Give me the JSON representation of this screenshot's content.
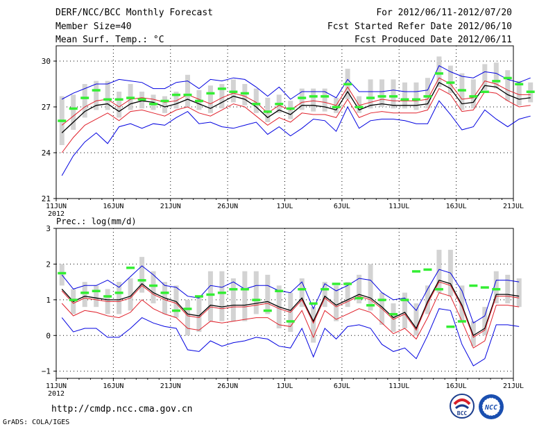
{
  "header": {
    "title": "DERF/NCC/BCC Monthly Forecast",
    "member_size": "Member Size=40",
    "variable": "Mean Surf. Temp.: °C",
    "period": "For 2012/06/11-2012/07/20",
    "refer_date": "Fcst Started Refer Date 2012/06/10",
    "produced_date": "Fcst Produced Date 2012/06/11"
  },
  "footer": {
    "url": "http://cmdp.ncc.cma.gov.cn",
    "credit": "GrADS: COLA/IGES",
    "logo_left_text": "BCC",
    "logo_right_text": "NCC"
  },
  "colors": {
    "bar": "#d3d3d3",
    "green": "#33ee33",
    "mean": "#000000",
    "inner": "#e0202a",
    "outer": "#0000e0"
  },
  "chart_data": [
    {
      "type": "line",
      "title": "Mean Surf. Temp.: °C",
      "x_ticks": [
        "11JUN",
        "16JUN",
        "21JUN",
        "26JUN",
        "1JUL",
        "6JUL",
        "11JUL",
        "16JUL",
        "21JUL"
      ],
      "x_year": "2012",
      "x_days": 40,
      "ylim": [
        21,
        31
      ],
      "yticks": [
        "21",
        "24",
        "27",
        "30"
      ],
      "grid": "dotted",
      "series": [
        {
          "name": "mean",
          "color": "#000000",
          "values": [
            25.3,
            26.0,
            26.7,
            27.1,
            27.2,
            26.7,
            27.2,
            27.4,
            27.3,
            27.0,
            27.2,
            27.5,
            27.2,
            26.9,
            27.3,
            27.7,
            27.5,
            27.0,
            26.3,
            26.8,
            26.5,
            27.1,
            27.1,
            27.0,
            26.8,
            28.0,
            26.8,
            27.1,
            27.2,
            27.1,
            27.1,
            27.1,
            27.2,
            28.6,
            28.2,
            27.2,
            27.3,
            28.4,
            28.3,
            27.8,
            27.5,
            27.6
          ]
        },
        {
          "name": "upper-inner",
          "color": "#e0202a",
          "values": [
            25.8,
            26.4,
            27.0,
            27.4,
            27.5,
            27.0,
            27.5,
            27.6,
            27.5,
            27.3,
            27.4,
            27.8,
            27.5,
            27.2,
            27.6,
            27.9,
            27.7,
            27.3,
            26.6,
            27.1,
            26.8,
            27.3,
            27.4,
            27.3,
            27.1,
            28.3,
            27.1,
            27.3,
            27.5,
            27.4,
            27.4,
            27.4,
            27.5,
            28.9,
            28.5,
            27.5,
            27.6,
            28.7,
            28.5,
            28.1,
            27.8,
            27.8
          ]
        },
        {
          "name": "lower-inner",
          "color": "#e0202a",
          "values": [
            24.0,
            25.0,
            25.8,
            26.2,
            26.6,
            26.1,
            26.7,
            26.8,
            26.6,
            26.4,
            26.8,
            27.0,
            26.6,
            26.4,
            26.8,
            27.2,
            27.0,
            26.4,
            25.8,
            26.3,
            26.0,
            26.6,
            26.5,
            26.5,
            26.3,
            27.5,
            26.3,
            26.6,
            26.7,
            26.6,
            26.6,
            26.6,
            26.8,
            28.2,
            27.8,
            26.7,
            26.8,
            28.0,
            27.9,
            27.4,
            27.0,
            27.1
          ]
        },
        {
          "name": "upper-outer",
          "color": "#0000e0",
          "values": [
            27.5,
            27.9,
            28.2,
            28.5,
            28.5,
            28.8,
            28.7,
            28.6,
            28.2,
            28.2,
            28.6,
            28.7,
            28.2,
            28.8,
            28.7,
            28.9,
            28.8,
            28.3,
            27.7,
            28.3,
            27.5,
            28.0,
            28.0,
            28.0,
            27.6,
            28.8,
            28.0,
            28.0,
            28.0,
            28.1,
            28.0,
            28.0,
            28.1,
            29.7,
            29.3,
            29.0,
            28.9,
            29.3,
            29.2,
            28.8,
            28.6,
            28.9
          ]
        },
        {
          "name": "lower-outer",
          "color": "#0000e0",
          "values": [
            22.5,
            23.8,
            24.7,
            25.3,
            24.6,
            25.7,
            25.9,
            25.6,
            25.9,
            25.8,
            26.3,
            26.7,
            25.9,
            26.0,
            25.7,
            25.6,
            25.8,
            26.0,
            25.2,
            25.7,
            25.1,
            25.6,
            26.2,
            26.1,
            25.4,
            27.0,
            25.6,
            26.1,
            26.2,
            26.2,
            26.1,
            25.9,
            25.9,
            27.4,
            26.5,
            25.5,
            25.7,
            26.8,
            26.2,
            25.7,
            26.2,
            26.4
          ]
        }
      ],
      "ensemble_ranges": [
        [
          24.5,
          27.7
        ],
        [
          25.5,
          27.8
        ],
        [
          26.3,
          28.5
        ],
        [
          26.8,
          28.7
        ],
        [
          26.8,
          28.7
        ],
        [
          26.3,
          28.0
        ],
        [
          26.8,
          28.5
        ],
        [
          26.9,
          28.0
        ],
        [
          26.8,
          27.8
        ],
        [
          26.6,
          27.7
        ],
        [
          26.9,
          28.0
        ],
        [
          27.0,
          29.1
        ],
        [
          26.8,
          28.1
        ],
        [
          26.6,
          28.4
        ],
        [
          26.9,
          28.5
        ],
        [
          27.3,
          28.8
        ],
        [
          27.1,
          28.5
        ],
        [
          26.6,
          28.2
        ],
        [
          26.0,
          27.6
        ],
        [
          26.6,
          27.8
        ],
        [
          26.2,
          27.4
        ],
        [
          26.8,
          28.2
        ],
        [
          26.7,
          28.2
        ],
        [
          26.7,
          28.2
        ],
        [
          26.6,
          27.6
        ],
        [
          27.5,
          29.5
        ],
        [
          26.6,
          27.7
        ],
        [
          26.9,
          28.8
        ],
        [
          27.0,
          28.8
        ],
        [
          26.9,
          28.8
        ],
        [
          26.9,
          28.6
        ],
        [
          26.8,
          28.6
        ],
        [
          26.9,
          28.9
        ],
        [
          28.3,
          30.3
        ],
        [
          27.9,
          29.7
        ],
        [
          26.8,
          29.2
        ],
        [
          26.9,
          28.8
        ],
        [
          28.1,
          29.8
        ],
        [
          28.2,
          29.9
        ],
        [
          27.4,
          29.4
        ],
        [
          27.1,
          28.7
        ],
        [
          27.3,
          28.6
        ]
      ],
      "observed_marks": [
        26.1,
        26.9,
        27.6,
        28.1,
        27.5,
        27.5,
        27.6,
        27.5,
        27.2,
        27.4,
        27.8,
        27.8,
        27.4,
        27.9,
        28.2,
        28.0,
        27.9,
        27.2,
        26.7,
        27.2,
        26.9,
        27.6,
        27.7,
        27.7,
        27.0,
        28.5,
        27.0,
        27.6,
        27.7,
        27.7,
        27.5,
        27.5,
        27.7,
        29.2,
        28.6,
        28.1,
        27.7,
        28.0,
        28.7,
        28.9,
        28.5,
        28.0
      ]
    },
    {
      "type": "line",
      "title": "Prec.: log(mm/d)",
      "x_ticks": [
        "11JUN",
        "16JUN",
        "21JUN",
        "26JUN",
        "1JUL",
        "6JUL",
        "11JUL",
        "16JUL",
        "21JUL"
      ],
      "x_year": "2012",
      "x_days": 40,
      "ylim": [
        -1.2,
        3
      ],
      "yticks": [
        "−1",
        "0",
        "1",
        "2",
        "3"
      ],
      "grid": "dotted",
      "series": [
        {
          "name": "mean",
          "color": "#000000",
          "values": [
            1.3,
            0.95,
            1.1,
            1.05,
            1.0,
            1.0,
            1.1,
            1.45,
            1.2,
            1.05,
            0.95,
            0.6,
            0.55,
            0.85,
            0.8,
            0.85,
            0.85,
            0.9,
            0.95,
            0.8,
            0.7,
            1.05,
            0.4,
            1.1,
            0.85,
            1.0,
            1.15,
            1.05,
            0.8,
            0.5,
            0.65,
            0.2,
            0.95,
            1.55,
            1.45,
            0.85,
            0.0,
            0.2,
            1.15,
            1.15,
            1.1
          ]
        },
        {
          "name": "upper-inner",
          "color": "#e0202a",
          "values": [
            1.25,
            0.9,
            1.05,
            1.0,
            0.95,
            0.95,
            1.05,
            1.4,
            1.15,
            1.0,
            0.9,
            0.55,
            0.5,
            0.8,
            0.75,
            0.8,
            0.8,
            0.85,
            0.9,
            0.75,
            0.65,
            1.0,
            0.35,
            1.05,
            0.8,
            0.95,
            1.1,
            1.0,
            0.75,
            0.45,
            0.6,
            0.15,
            0.9,
            1.5,
            1.4,
            0.8,
            -0.05,
            0.15,
            1.1,
            1.1,
            1.05
          ]
        },
        {
          "name": "lower-inner",
          "color": "#e0202a",
          "values": [
            0.9,
            0.55,
            0.7,
            0.65,
            0.55,
            0.5,
            0.65,
            1.0,
            0.75,
            0.6,
            0.5,
            0.2,
            0.15,
            0.4,
            0.35,
            0.4,
            0.45,
            0.5,
            0.5,
            0.3,
            0.25,
            0.7,
            -0.05,
            0.7,
            0.45,
            0.6,
            0.75,
            0.65,
            0.35,
            0.05,
            0.2,
            -0.1,
            0.5,
            1.2,
            1.1,
            0.4,
            -0.35,
            -0.15,
            0.85,
            0.85,
            0.8
          ]
        },
        {
          "name": "upper-outer",
          "color": "#0000e0",
          "values": [
            1.7,
            1.3,
            1.4,
            1.4,
            1.55,
            1.35,
            1.65,
            1.95,
            1.7,
            1.4,
            1.35,
            1.1,
            1.05,
            1.4,
            1.35,
            1.5,
            1.3,
            1.4,
            1.4,
            1.25,
            1.2,
            1.5,
            0.75,
            1.45,
            1.25,
            1.4,
            1.6,
            1.55,
            1.2,
            1.0,
            1.05,
            0.7,
            1.3,
            1.85,
            1.75,
            1.25,
            0.35,
            0.55,
            1.55,
            1.55,
            1.5
          ]
        },
        {
          "name": "lower-outer",
          "color": "#0000e0",
          "values": [
            0.5,
            0.1,
            0.2,
            0.2,
            -0.05,
            -0.05,
            0.2,
            0.5,
            0.35,
            0.25,
            0.2,
            -0.4,
            -0.45,
            -0.15,
            -0.3,
            -0.2,
            -0.15,
            -0.05,
            -0.1,
            -0.3,
            -0.35,
            0.2,
            -0.6,
            0.2,
            -0.1,
            0.25,
            0.3,
            0.2,
            -0.25,
            -0.45,
            -0.35,
            -0.65,
            0.0,
            0.75,
            0.7,
            -0.25,
            -0.85,
            -0.65,
            0.3,
            0.3,
            0.25
          ]
        }
      ],
      "ensemble_ranges": [
        [
          1.4,
          2.0
        ],
        [
          0.6,
          1.3
        ],
        [
          0.8,
          1.5
        ],
        [
          0.8,
          1.4
        ],
        [
          0.6,
          1.3
        ],
        [
          0.6,
          1.5
        ],
        [
          0.7,
          1.6
        ],
        [
          1.2,
          2.2
        ],
        [
          0.9,
          1.8
        ],
        [
          0.6,
          1.5
        ],
        [
          0.5,
          1.4
        ],
        [
          0.0,
          1.0
        ],
        [
          0.1,
          1.1
        ],
        [
          0.4,
          1.8
        ],
        [
          0.4,
          1.8
        ],
        [
          0.4,
          1.6
        ],
        [
          0.4,
          1.8
        ],
        [
          0.6,
          1.8
        ],
        [
          0.6,
          1.7
        ],
        [
          0.2,
          1.4
        ],
        [
          0.1,
          1.2
        ],
        [
          0.8,
          1.6
        ],
        [
          -0.2,
          0.8
        ],
        [
          0.8,
          1.5
        ],
        [
          0.4,
          1.4
        ],
        [
          0.8,
          1.5
        ],
        [
          0.9,
          1.7
        ],
        [
          0.7,
          2.0
        ],
        [
          0.3,
          1.2
        ],
        [
          0.1,
          0.9
        ],
        [
          0.2,
          1.2
        ],
        [
          0.0,
          0.9
        ],
        [
          0.6,
          1.4
        ],
        [
          1.2,
          2.4
        ],
        [
          1.1,
          2.4
        ],
        [
          0.4,
          1.4
        ],
        [
          -0.3,
          0.4
        ],
        [
          0.0,
          0.8
        ],
        [
          0.9,
          1.8
        ],
        [
          0.9,
          1.7
        ],
        [
          0.8,
          1.6
        ]
      ],
      "observed_marks": [
        1.75,
        1.0,
        1.2,
        1.25,
        1.1,
        1.2,
        1.9,
        1.55,
        1.4,
        1.2,
        0.7,
        0.75,
        1.1,
        1.15,
        1.2,
        1.3,
        1.3,
        1.0,
        0.7,
        1.25,
        0.4,
        1.3,
        0.9,
        1.3,
        1.45,
        1.45,
        1.05,
        0.85,
        1.0,
        0.6,
        1.0,
        1.8,
        1.85,
        1.3,
        0.25,
        0.4,
        1.4,
        1.35,
        1.3
      ]
    }
  ]
}
